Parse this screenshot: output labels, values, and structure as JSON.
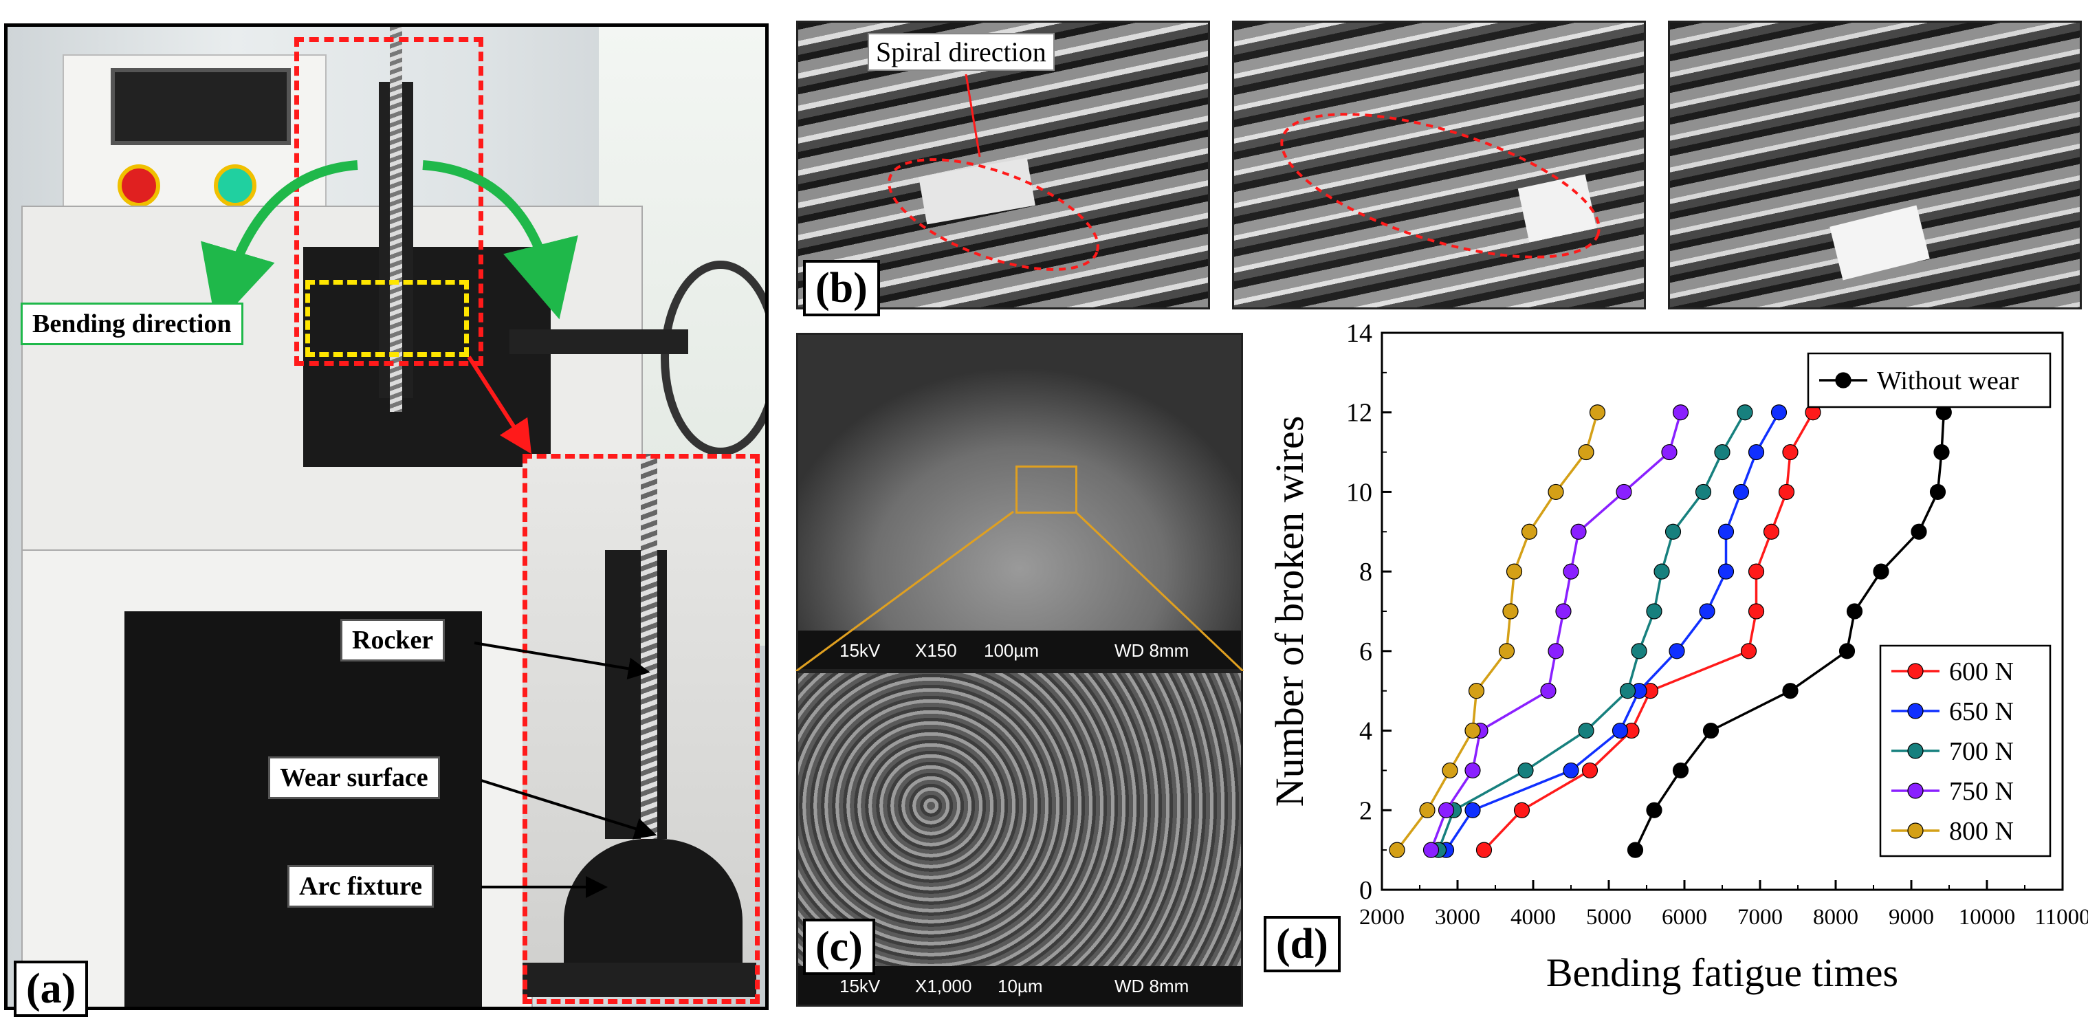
{
  "panel_a": {
    "tag": "(a)",
    "bending_direction": "Bending direction",
    "rocker": "Rocker",
    "wear_surface": "Wear surface",
    "arc_fixture": "Arc fixture"
  },
  "panel_b": {
    "tag": "(b)",
    "spiral_direction": "Spiral direction"
  },
  "panel_c": {
    "tag": "(c)",
    "top_bar": {
      "kv": "15kV",
      "mag": "X150",
      "scale": "100µm",
      "wd": "WD 8mm"
    },
    "bottom_bar": {
      "kv": "15kV",
      "mag": "X1,000",
      "scale": "10µm",
      "wd": "WD 8mm"
    }
  },
  "panel_d": {
    "tag": "(d)"
  },
  "chart_data": {
    "type": "line",
    "xlabel": "Bending fatigue times",
    "ylabel": "Number of broken wires",
    "xlim": [
      2000,
      11000
    ],
    "ylim": [
      0,
      14
    ],
    "xticks": [
      2000,
      3000,
      4000,
      5000,
      6000,
      7000,
      8000,
      9000,
      10000,
      11000
    ],
    "yticks": [
      0,
      2,
      4,
      6,
      8,
      10,
      12,
      14
    ],
    "grid": false,
    "legend_top": "top-right",
    "legend_bottom": "bottom-right",
    "series": [
      {
        "name": "Without wear",
        "color": "#000000",
        "legend": "top",
        "points": [
          [
            5350,
            1
          ],
          [
            5600,
            2
          ],
          [
            5950,
            3
          ],
          [
            6350,
            4
          ],
          [
            7400,
            5
          ],
          [
            8150,
            6
          ],
          [
            8250,
            7
          ],
          [
            8600,
            8
          ],
          [
            9100,
            9
          ],
          [
            9350,
            10
          ],
          [
            9400,
            11
          ],
          [
            9430,
            12
          ]
        ]
      },
      {
        "name": "600 N",
        "color": "#ff1a1a",
        "legend": "bottom",
        "points": [
          [
            3350,
            1
          ],
          [
            3850,
            2
          ],
          [
            4750,
            3
          ],
          [
            5300,
            4
          ],
          [
            5550,
            5
          ],
          [
            6850,
            6
          ],
          [
            6950,
            7
          ],
          [
            6950,
            8
          ],
          [
            7150,
            9
          ],
          [
            7350,
            10
          ],
          [
            7400,
            11
          ],
          [
            7700,
            12
          ]
        ]
      },
      {
        "name": "650 N",
        "color": "#1030ff",
        "legend": "bottom",
        "points": [
          [
            2850,
            1
          ],
          [
            3200,
            2
          ],
          [
            4500,
            3
          ],
          [
            5150,
            4
          ],
          [
            5400,
            5
          ],
          [
            5900,
            6
          ],
          [
            6300,
            7
          ],
          [
            6550,
            8
          ],
          [
            6550,
            9
          ],
          [
            6750,
            10
          ],
          [
            6950,
            11
          ],
          [
            7250,
            12
          ]
        ]
      },
      {
        "name": "700 N",
        "color": "#17807e",
        "legend": "bottom",
        "points": [
          [
            2750,
            1
          ],
          [
            2950,
            2
          ],
          [
            3900,
            3
          ],
          [
            4700,
            4
          ],
          [
            5250,
            5
          ],
          [
            5400,
            6
          ],
          [
            5600,
            7
          ],
          [
            5700,
            8
          ],
          [
            5850,
            9
          ],
          [
            6250,
            10
          ],
          [
            6500,
            11
          ],
          [
            6800,
            12
          ]
        ]
      },
      {
        "name": "750 N",
        "color": "#8a20ff",
        "legend": "bottom",
        "points": [
          [
            2650,
            1
          ],
          [
            2850,
            2
          ],
          [
            3200,
            3
          ],
          [
            3300,
            4
          ],
          [
            4200,
            5
          ],
          [
            4300,
            6
          ],
          [
            4400,
            7
          ],
          [
            4500,
            8
          ],
          [
            4600,
            9
          ],
          [
            5200,
            10
          ],
          [
            5800,
            11
          ],
          [
            5950,
            12
          ]
        ]
      },
      {
        "name": "800 N",
        "color": "#d4a017",
        "legend": "bottom",
        "points": [
          [
            2200,
            1
          ],
          [
            2600,
            2
          ],
          [
            2900,
            3
          ],
          [
            3200,
            4
          ],
          [
            3250,
            5
          ],
          [
            3650,
            6
          ],
          [
            3700,
            7
          ],
          [
            3750,
            8
          ],
          [
            3950,
            9
          ],
          [
            4300,
            10
          ],
          [
            4700,
            11
          ],
          [
            4850,
            12
          ]
        ]
      }
    ]
  }
}
